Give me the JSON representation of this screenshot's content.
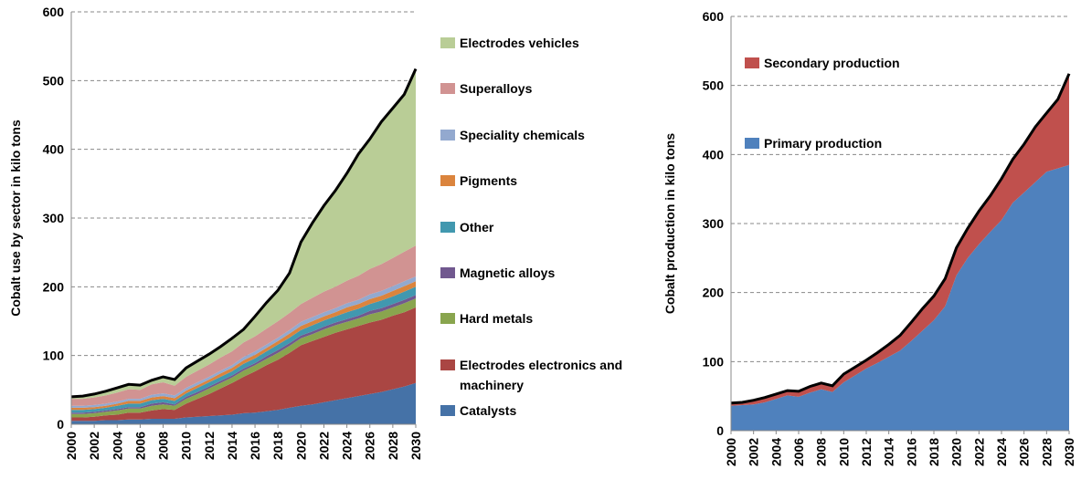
{
  "chart_data": [
    {
      "type": "stacked-area",
      "y_label": "Cobalt use by sector in kilo tons",
      "x": [
        2000,
        2001,
        2002,
        2003,
        2004,
        2005,
        2006,
        2007,
        2008,
        2009,
        2010,
        2011,
        2012,
        2013,
        2014,
        2015,
        2016,
        2017,
        2018,
        2019,
        2020,
        2021,
        2022,
        2023,
        2024,
        2025,
        2026,
        2027,
        2028,
        2029,
        2030
      ],
      "xlim": [
        2000,
        2030
      ],
      "xticks": [
        2000,
        2002,
        2004,
        2006,
        2008,
        2010,
        2012,
        2014,
        2016,
        2018,
        2020,
        2022,
        2024,
        2026,
        2028,
        2030
      ],
      "ylim": [
        0,
        600
      ],
      "yticks": [
        0,
        100,
        200,
        300,
        400,
        500,
        600
      ],
      "grid": true,
      "legend": "right",
      "outline_color": "#000000",
      "series": [
        {
          "name": "Catalysts",
          "color": "#4572a7",
          "values": [
            5,
            5,
            5,
            6,
            6,
            7,
            7,
            8,
            8,
            8,
            10,
            11,
            12,
            13,
            14,
            16,
            17,
            19,
            21,
            24,
            27,
            29,
            32,
            35,
            38,
            41,
            44,
            47,
            51,
            55,
            60
          ]
        },
        {
          "name": "Electrodes electronics and machinery",
          "color": "#aa4643",
          "values": [
            5,
            5,
            6,
            7,
            8,
            10,
            10,
            12,
            14,
            13,
            20,
            26,
            32,
            39,
            46,
            53,
            60,
            67,
            73,
            80,
            88,
            92,
            95,
            98,
            100,
            102,
            104,
            105,
            107,
            108,
            110
          ]
        },
        {
          "name": "Hard metals",
          "color": "#89a54e",
          "values": [
            5,
            5,
            5,
            5,
            6,
            6,
            6,
            7,
            7,
            6,
            7,
            7,
            8,
            8,
            8,
            9,
            9,
            9,
            10,
            10,
            10,
            10,
            11,
            11,
            11,
            11,
            12,
            12,
            12,
            13,
            13
          ]
        },
        {
          "name": "Magnetic alloys",
          "color": "#71588f",
          "values": [
            2,
            2,
            2,
            2,
            2,
            2,
            2,
            3,
            3,
            2,
            3,
            3,
            3,
            3,
            3,
            3,
            3,
            4,
            4,
            4,
            4,
            4,
            4,
            4,
            4,
            4,
            5,
            5,
            5,
            5,
            5
          ]
        },
        {
          "name": "Other",
          "color": "#4198af",
          "values": [
            4,
            4,
            4,
            4,
            5,
            5,
            5,
            5,
            5,
            5,
            5,
            6,
            6,
            6,
            6,
            7,
            7,
            7,
            8,
            8,
            8,
            9,
            9,
            9,
            10,
            10,
            10,
            11,
            11,
            12,
            12
          ]
        },
        {
          "name": "Pigments",
          "color": "#db843d",
          "values": [
            3,
            3,
            3,
            3,
            3,
            4,
            4,
            4,
            4,
            4,
            4,
            4,
            4,
            5,
            5,
            5,
            5,
            5,
            5,
            6,
            6,
            6,
            6,
            6,
            7,
            7,
            7,
            7,
            8,
            8,
            8
          ]
        },
        {
          "name": "Speciality chemicals",
          "color": "#93a9cf",
          "values": [
            3,
            3,
            3,
            3,
            3,
            3,
            3,
            4,
            4,
            4,
            4,
            4,
            4,
            4,
            4,
            5,
            5,
            5,
            5,
            5,
            6,
            6,
            6,
            6,
            6,
            6,
            7,
            7,
            7,
            7,
            7
          ]
        },
        {
          "name": "Superalloys",
          "color": "#d19392",
          "values": [
            10,
            10,
            11,
            12,
            13,
            14,
            13,
            15,
            16,
            14,
            16,
            17,
            18,
            19,
            20,
            21,
            22,
            23,
            24,
            25,
            26,
            28,
            30,
            31,
            33,
            35,
            37,
            39,
            41,
            43,
            45
          ]
        },
        {
          "name": "Electrodes vehicles",
          "color": "#b9cd96",
          "values": [
            3,
            4,
            5,
            6,
            7,
            7,
            7,
            6,
            8,
            9,
            13,
            14,
            15,
            16,
            19,
            19,
            29,
            38,
            45,
            58,
            90,
            109,
            125,
            140,
            156,
            177,
            189,
            207,
            218,
            229,
            257
          ]
        }
      ]
    },
    {
      "type": "stacked-area",
      "y_label": "Cobalt production in kilo tons",
      "x": [
        2000,
        2001,
        2002,
        2003,
        2004,
        2005,
        2006,
        2007,
        2008,
        2009,
        2010,
        2011,
        2012,
        2013,
        2014,
        2015,
        2016,
        2017,
        2018,
        2019,
        2020,
        2021,
        2022,
        2023,
        2024,
        2025,
        2026,
        2027,
        2028,
        2029,
        2030
      ],
      "xlim": [
        2000,
        2030
      ],
      "xticks": [
        2000,
        2002,
        2004,
        2006,
        2008,
        2010,
        2012,
        2014,
        2016,
        2018,
        2020,
        2022,
        2024,
        2026,
        2028,
        2030
      ],
      "ylim": [
        0,
        600
      ],
      "yticks": [
        0,
        100,
        200,
        300,
        400,
        500,
        600
      ],
      "grid": true,
      "legend": "upper left",
      "outline_color": "#000000",
      "series": [
        {
          "name": "Primary production",
          "color": "#4f81bd",
          "values": [
            36,
            37,
            38,
            41,
            46,
            51,
            49,
            55,
            60,
            56,
            70,
            80,
            90,
            98,
            107,
            116,
            130,
            145,
            160,
            180,
            225,
            250,
            270,
            288,
            305,
            330,
            345,
            360,
            375,
            380,
            385
          ]
        },
        {
          "name": "Secondary production",
          "color": "#c0504d",
          "values": [
            4,
            4,
            6,
            7,
            7,
            7,
            8,
            9,
            9,
            9,
            12,
            12,
            12,
            15,
            18,
            22,
            27,
            32,
            35,
            40,
            40,
            43,
            48,
            52,
            60,
            63,
            70,
            80,
            85,
            100,
            132
          ]
        }
      ]
    }
  ]
}
